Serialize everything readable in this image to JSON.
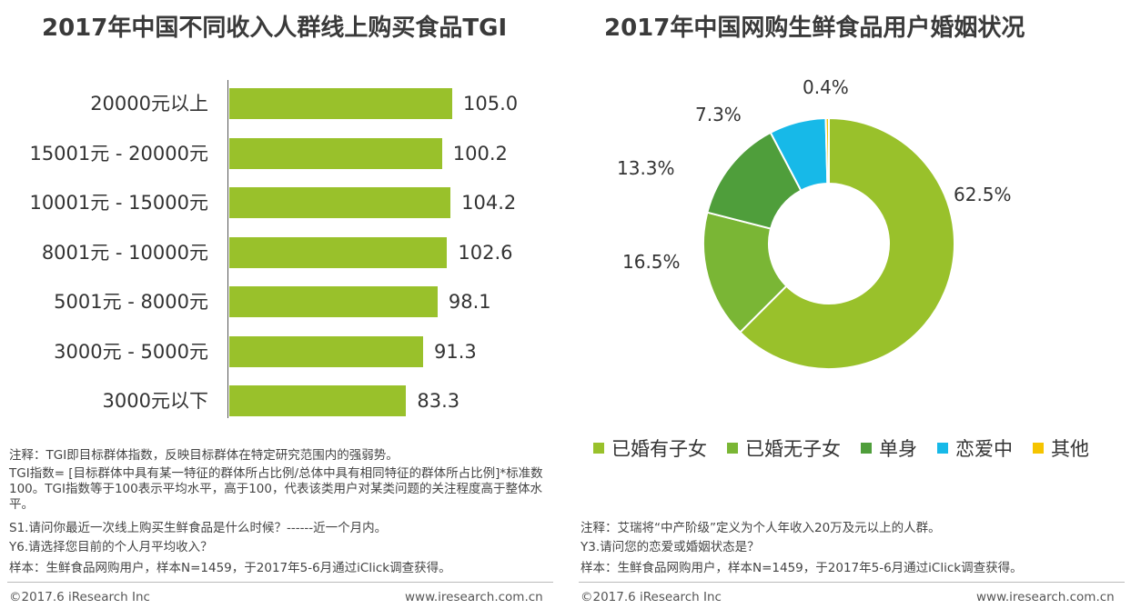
{
  "chart_data": [
    {
      "type": "bar",
      "orientation": "horizontal",
      "title": "2017年中国不同收入人群线上购买食品TGI",
      "categories": [
        "20000元以上",
        "15001元 - 20000元",
        "10001元 - 15000元",
        "8001元 - 10000元",
        "5001元 - 8000元",
        "3000元 - 5000元",
        "3000元以下"
      ],
      "values": [
        105.0,
        100.2,
        104.2,
        102.6,
        98.1,
        91.3,
        83.3
      ],
      "value_labels": [
        "105.0",
        "100.2",
        "104.2",
        "102.6",
        "98.1",
        "91.3",
        "83.3"
      ],
      "color": "#99c12b",
      "xlim": [
        0,
        105
      ]
    },
    {
      "type": "pie",
      "donut": true,
      "title": "2017年中国网购生鲜食品用户婚姻状况",
      "categories": [
        "已婚有子女",
        "已婚无子女",
        "单身",
        "恋爱中",
        "其他"
      ],
      "values": [
        62.5,
        16.5,
        13.3,
        7.3,
        0.4
      ],
      "value_labels": [
        "62.5%",
        "16.5%",
        "13.3%",
        "7.3%",
        "0.4%"
      ],
      "colors": [
        "#99c12b",
        "#7ab635",
        "#4f9e3b",
        "#17b9e8",
        "#f5c400"
      ],
      "legend_position": "bottom"
    }
  ],
  "notes_left": {
    "line1": "注释：TGI即目标群体指数，反映目标群体在特定研究范围内的强弱势。",
    "line2": "TGI指数= [目标群体中具有某一特征的群体所占比例/总体中具有相同特征的群体所占比例]*标准数100。TGI指数等于100表示平均水平，高于100，代表该类用户对某类问题的关注程度高于整体水平。",
    "line3": "S1.请问你最近一次线上购买生鲜食品是什么时候？------近一个月内。",
    "line4": "Y6.请选择您目前的个人月平均收入？",
    "line5": "样本：生鲜食品网购用户，样本N=1459，于2017年5-6月通过iClick调查获得。"
  },
  "notes_right": {
    "line1": "注释：艾瑞将“中产阶级”定义为个人年收入20万及元以上的人群。",
    "line2": "Y3.请问您的恋爱或婚姻状态是？",
    "line3": "样本：生鲜食品网购用户，样本N=1459，于2017年5-6月通过iClick调查获得。"
  },
  "footer": {
    "copyright": "©2017.6 iResearch Inc",
    "url": "www.iresearch.com.cn"
  }
}
